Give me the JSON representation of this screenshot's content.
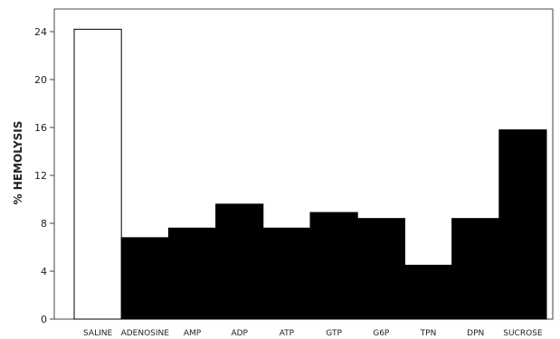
{
  "chart_data": {
    "type": "bar",
    "title": "",
    "xlabel": "",
    "ylabel": "% HEMOLYSIS",
    "ylim": [
      0,
      26
    ],
    "yticks": [
      0,
      4,
      8,
      12,
      16,
      20,
      24
    ],
    "grid": false,
    "categories": [
      "SALINE",
      "ADENOSINE",
      "AMP",
      "ADP",
      "ATP",
      "GTP",
      "G6P",
      "TPN",
      "DPN",
      "SUCROSE"
    ],
    "values": [
      24.2,
      6.8,
      7.6,
      9.6,
      7.6,
      8.9,
      8.4,
      4.5,
      8.4,
      15.8
    ],
    "bar_fill": [
      "#ffffff",
      "#000000",
      "#000000",
      "#000000",
      "#000000",
      "#000000",
      "#000000",
      "#000000",
      "#000000",
      "#000000"
    ],
    "bar_stroke": "#000000"
  }
}
